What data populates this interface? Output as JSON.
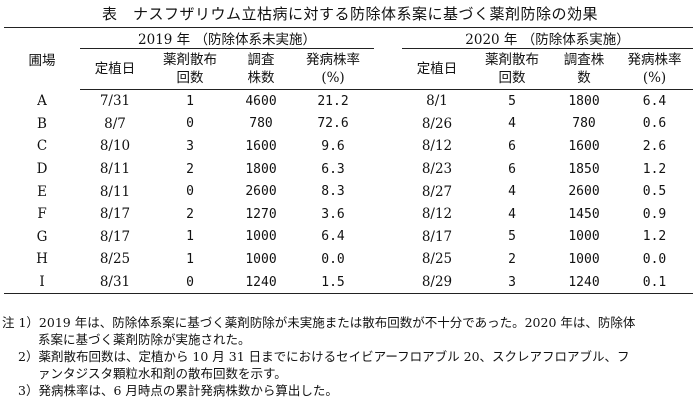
{
  "title": "表　ナスフザリウム立枯病に対する防除体系案に基づく薬剤防除の効果",
  "headers": {
    "field": "圃場",
    "group2019": "2019 年 （防除体系未実施）",
    "group2020": "2020 年 （防除体系実施）",
    "planting_date": "定植日",
    "applications_line1": "薬剤散布",
    "applications_line2": "回数",
    "surveyed_line1_2019": "調査",
    "surveyed_line2_2019": "株数",
    "surveyed_2020_line1": "調査株",
    "surveyed_2020_line2": "数",
    "incidence_line1": "発病株率",
    "incidence_line2": "(%)"
  },
  "rows": [
    {
      "field": "A",
      "d19": "7/31",
      "n19": "1",
      "s19": "4600",
      "r19": "21.2",
      "d20": "8/1",
      "n20": "5",
      "s20": "1800",
      "r20": "6.4"
    },
    {
      "field": "B",
      "d19": "8/7",
      "n19": "0",
      "s19": "780",
      "r19": "72.6",
      "d20": "8/26",
      "n20": "4",
      "s20": "780",
      "r20": "0.6"
    },
    {
      "field": "C",
      "d19": "8/10",
      "n19": "3",
      "s19": "1600",
      "r19": "9.6",
      "d20": "8/12",
      "n20": "6",
      "s20": "1600",
      "r20": "2.6"
    },
    {
      "field": "D",
      "d19": "8/11",
      "n19": "2",
      "s19": "1800",
      "r19": "6.3",
      "d20": "8/23",
      "n20": "6",
      "s20": "1850",
      "r20": "1.2"
    },
    {
      "field": "E",
      "d19": "8/11",
      "n19": "0",
      "s19": "2600",
      "r19": "8.3",
      "d20": "8/27",
      "n20": "4",
      "s20": "2600",
      "r20": "0.5"
    },
    {
      "field": "F",
      "d19": "8/17",
      "n19": "2",
      "s19": "1270",
      "r19": "3.6",
      "d20": "8/12",
      "n20": "4",
      "s20": "1450",
      "r20": "0.9"
    },
    {
      "field": "G",
      "d19": "8/17",
      "n19": "1",
      "s19": "1000",
      "r19": "6.4",
      "d20": "8/17",
      "n20": "5",
      "s20": "1000",
      "r20": "1.2"
    },
    {
      "field": "H",
      "d19": "8/25",
      "n19": "1",
      "s19": "1000",
      "r19": "0.0",
      "d20": "8/25",
      "n20": "2",
      "s20": "1000",
      "r20": "0.0"
    },
    {
      "field": "I",
      "d19": "8/31",
      "n19": "0",
      "s19": "1240",
      "r19": "1.5",
      "d20": "8/29",
      "n20": "3",
      "s20": "1240",
      "r20": "0.1"
    }
  ],
  "notes": {
    "n1_line1": "注 1）2019 年は、防除体系案に基づく薬剤防除が未実施または散布回数が不十分であった。2020 年は、防除体",
    "n1_line2": "系案に基づく薬剤防除が実施された。",
    "n2_line1": "2）薬剤散布回数は、定植から 10 月 31 日までにおけるセイビアーフロアブル 20、スクレアフロアブル、フ",
    "n2_line2": "ァンタジスタ顆粒水和剤の散布回数を示す。",
    "n3_line1": "3）発病株率は、6 月時点の累計発病株数から算出した。"
  }
}
